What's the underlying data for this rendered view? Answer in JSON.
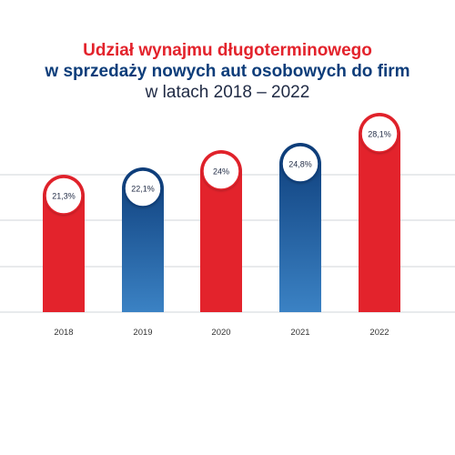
{
  "title": {
    "line1": "Udział wynajmu długoterminowego",
    "line2": "w sprzedaży nowych aut osobowych do firm",
    "line3": "w latach 2018 – 2022"
  },
  "colors": {
    "title_red": "#e3232c",
    "title_blue": "#0d3d7a",
    "red_bar": "#e3232c",
    "blue_bar_top": "#0d3d7a",
    "blue_bar_bottom": "#3b82c4",
    "grid": "#d0d4da",
    "axis_label": "#333333"
  },
  "chart_data": {
    "type": "bar",
    "categories": [
      "2018",
      "2019",
      "2020",
      "2021",
      "2022"
    ],
    "values": [
      21.3,
      22.1,
      24.0,
      24.8,
      28.1
    ],
    "data_labels": [
      "21,3%",
      "22,1%",
      "24%",
      "24,8%",
      "28,1%"
    ],
    "bar_colors": [
      "red",
      "blue",
      "red",
      "blue",
      "red"
    ],
    "unit": "%",
    "ylim": [
      0,
      30
    ],
    "grid": true,
    "legend": "none"
  }
}
